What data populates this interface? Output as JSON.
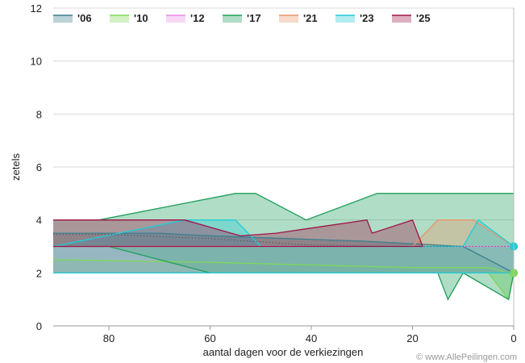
{
  "chart_data": {
    "type": "area",
    "xlabel": "aantal dagen voor de verkiezingen",
    "ylabel": "zetels",
    "xlim": [
      91,
      0
    ],
    "ylim": [
      0,
      12
    ],
    "x_ticks": [
      "80",
      "60",
      "40",
      "20",
      "0"
    ],
    "y_ticks": [
      "0",
      "2",
      "4",
      "6",
      "8",
      "10",
      "12"
    ],
    "grid": "horizontal",
    "legend_position": "top",
    "credit": "© www.AllePeilingen.com",
    "series": [
      {
        "name": "'06",
        "color": "#3a7f8f",
        "upper": [
          [
            91,
            3.5
          ],
          [
            70,
            3.5
          ],
          [
            60,
            3.4
          ],
          [
            45,
            3.3
          ],
          [
            30,
            3.2
          ],
          [
            10,
            3
          ],
          [
            0,
            2
          ]
        ],
        "lower": [
          [
            91,
            2
          ],
          [
            70,
            2
          ],
          [
            60,
            2
          ],
          [
            45,
            2
          ],
          [
            30,
            2
          ],
          [
            10,
            2
          ],
          [
            0,
            2
          ]
        ],
        "end_value": 2
      },
      {
        "name": "'10",
        "color": "#7ed957",
        "upper": [
          [
            91,
            2.5
          ],
          [
            60,
            2.4
          ],
          [
            40,
            2.3
          ],
          [
            20,
            2.2
          ],
          [
            5,
            2.2
          ],
          [
            1,
            2
          ],
          [
            0,
            2
          ]
        ],
        "lower": [
          [
            91,
            2
          ],
          [
            60,
            2
          ],
          [
            40,
            2
          ],
          [
            20,
            2
          ],
          [
            5,
            2
          ],
          [
            1,
            1
          ],
          [
            0,
            2
          ]
        ],
        "end_value": 2
      },
      {
        "name": "'12",
        "color": "#e58be5",
        "upper": [
          [
            91,
            3
          ],
          [
            60,
            3
          ],
          [
            40,
            3
          ],
          [
            20,
            3
          ],
          [
            0,
            3
          ]
        ],
        "lower": [
          [
            91,
            2
          ],
          [
            60,
            2
          ],
          [
            40,
            2
          ],
          [
            20,
            2
          ],
          [
            0,
            2
          ]
        ],
        "end_value": 3
      },
      {
        "name": "'17",
        "color": "#1e9e5a",
        "upper": [
          [
            91,
            4
          ],
          [
            82,
            4
          ],
          [
            55,
            5
          ],
          [
            51,
            5
          ],
          [
            41,
            4
          ],
          [
            27,
            5
          ],
          [
            0,
            5
          ]
        ],
        "lower": [
          [
            91,
            3
          ],
          [
            80,
            3
          ],
          [
            60,
            2
          ],
          [
            40,
            2
          ],
          [
            20,
            2
          ],
          [
            15,
            2
          ],
          [
            13,
            1
          ],
          [
            10,
            2
          ],
          [
            1,
            1
          ],
          [
            0,
            2
          ]
        ],
        "end_value": 3
      },
      {
        "name": "'21",
        "color": "#e8956a",
        "upper": [
          [
            91,
            3
          ],
          [
            70,
            3
          ],
          [
            40,
            3
          ],
          [
            20,
            3
          ],
          [
            15,
            4
          ],
          [
            8,
            4
          ],
          [
            0,
            3
          ]
        ],
        "lower": [
          [
            91,
            2
          ],
          [
            70,
            2
          ],
          [
            40,
            2
          ],
          [
            20,
            2
          ],
          [
            15,
            2
          ],
          [
            8,
            2
          ],
          [
            0,
            2
          ]
        ],
        "end_value": 3
      },
      {
        "name": "'23",
        "color": "#22ccd9",
        "upper": [
          [
            91,
            3
          ],
          [
            65,
            4
          ],
          [
            55,
            4
          ],
          [
            50,
            3
          ],
          [
            30,
            3
          ],
          [
            10,
            3
          ],
          [
            7,
            4
          ],
          [
            0,
            3
          ]
        ],
        "lower": [
          [
            91,
            2
          ],
          [
            65,
            2
          ],
          [
            55,
            2
          ],
          [
            50,
            2
          ],
          [
            30,
            2
          ],
          [
            10,
            2
          ],
          [
            7,
            2
          ],
          [
            0,
            2
          ]
        ],
        "end_value": 3
      },
      {
        "name": "'25",
        "color": "#a0134a",
        "upper": [
          [
            91,
            4
          ],
          [
            65,
            4
          ],
          [
            54,
            3.4
          ],
          [
            47,
            3.5
          ],
          [
            29,
            4
          ],
          [
            28,
            3.5
          ],
          [
            20,
            4
          ],
          [
            18,
            3
          ]
        ],
        "lower": [
          [
            91,
            3
          ],
          [
            70,
            3
          ],
          [
            50,
            3
          ],
          [
            30,
            3
          ],
          [
            20,
            3
          ],
          [
            18,
            3
          ]
        ],
        "end_value": null
      }
    ],
    "dotted_mean": [
      [
        91,
        3.45
      ],
      [
        80,
        3.45
      ],
      [
        60,
        3.3
      ],
      [
        40,
        3.05
      ],
      [
        20,
        3
      ],
      [
        10,
        3
      ],
      [
        0,
        3
      ]
    ]
  }
}
